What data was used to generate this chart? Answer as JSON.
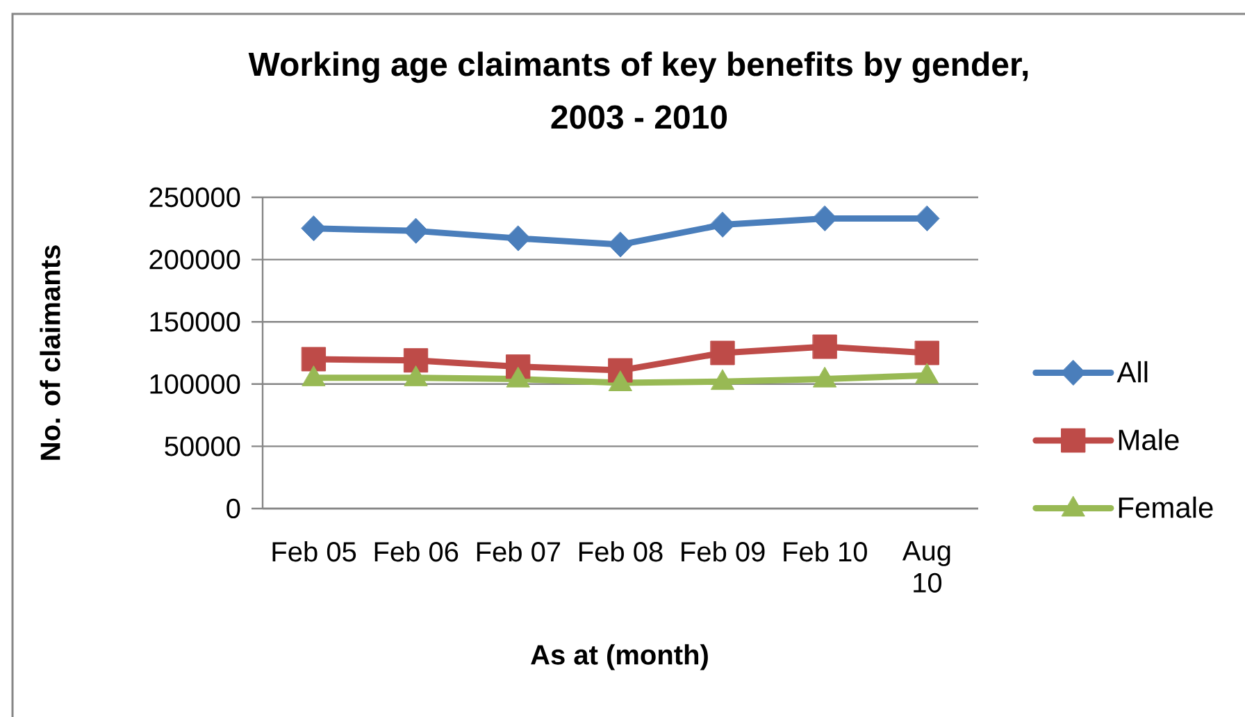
{
  "chart_data": {
    "type": "line",
    "title": "Working age claimants of key benefits by gender, 2003 - 2010",
    "xlabel": "As at (month)",
    "ylabel": "No. of claimants",
    "categories": [
      "Feb 05",
      "Feb 06",
      "Feb 07",
      "Feb 08",
      "Feb 09",
      "Feb 10",
      "Aug 10"
    ],
    "series": [
      {
        "name": "All",
        "color": "#4a7ebb",
        "marker": "diamond",
        "values": [
          225000,
          223000,
          217000,
          212000,
          228000,
          233000,
          233000
        ]
      },
      {
        "name": "Male",
        "color": "#be4b48",
        "marker": "square",
        "values": [
          120000,
          119000,
          114000,
          111000,
          125000,
          130000,
          125000
        ]
      },
      {
        "name": "Female",
        "color": "#98b954",
        "marker": "triangle",
        "values": [
          105000,
          105000,
          104000,
          101000,
          102000,
          104000,
          107000
        ]
      }
    ],
    "ylim": [
      0,
      250000
    ],
    "yticks": [
      0,
      50000,
      100000,
      150000,
      200000,
      250000
    ],
    "grid": "y",
    "legend": "right",
    "line_style": "solid"
  }
}
